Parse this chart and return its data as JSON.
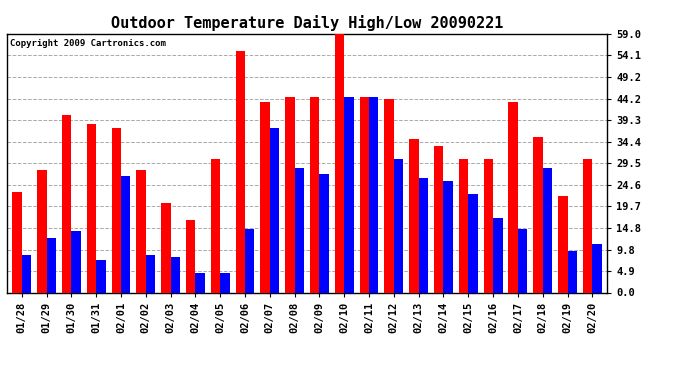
{
  "title": "Outdoor Temperature Daily High/Low 20090221",
  "copyright": "Copyright 2009 Cartronics.com",
  "dates": [
    "01/28",
    "01/29",
    "01/30",
    "01/31",
    "02/01",
    "02/02",
    "02/03",
    "02/04",
    "02/05",
    "02/06",
    "02/07",
    "02/08",
    "02/09",
    "02/10",
    "02/11",
    "02/12",
    "02/13",
    "02/14",
    "02/15",
    "02/16",
    "02/17",
    "02/18",
    "02/19",
    "02/20"
  ],
  "highs": [
    23.0,
    28.0,
    40.5,
    38.5,
    37.5,
    28.0,
    20.5,
    16.5,
    30.5,
    55.0,
    43.5,
    44.5,
    44.5,
    59.0,
    44.5,
    44.2,
    35.0,
    33.5,
    30.5,
    30.5,
    43.5,
    35.5,
    22.0,
    30.5
  ],
  "lows": [
    8.5,
    12.5,
    14.0,
    7.5,
    26.5,
    8.5,
    8.0,
    4.5,
    4.5,
    14.5,
    37.5,
    28.5,
    27.0,
    44.5,
    44.5,
    30.5,
    26.0,
    25.5,
    22.5,
    17.0,
    14.5,
    28.5,
    9.5,
    11.0
  ],
  "high_color": "#ff0000",
  "low_color": "#0000ff",
  "bg_color": "#ffffff",
  "grid_color": "#aaaaaa",
  "yticks": [
    0.0,
    4.9,
    9.8,
    14.8,
    19.7,
    24.6,
    29.5,
    34.4,
    39.3,
    44.2,
    49.2,
    54.1,
    59.0
  ],
  "ylim": [
    0,
    59.0
  ],
  "bar_width": 0.38,
  "title_fontsize": 11,
  "tick_fontsize": 7.5,
  "copyright_fontsize": 6.5
}
